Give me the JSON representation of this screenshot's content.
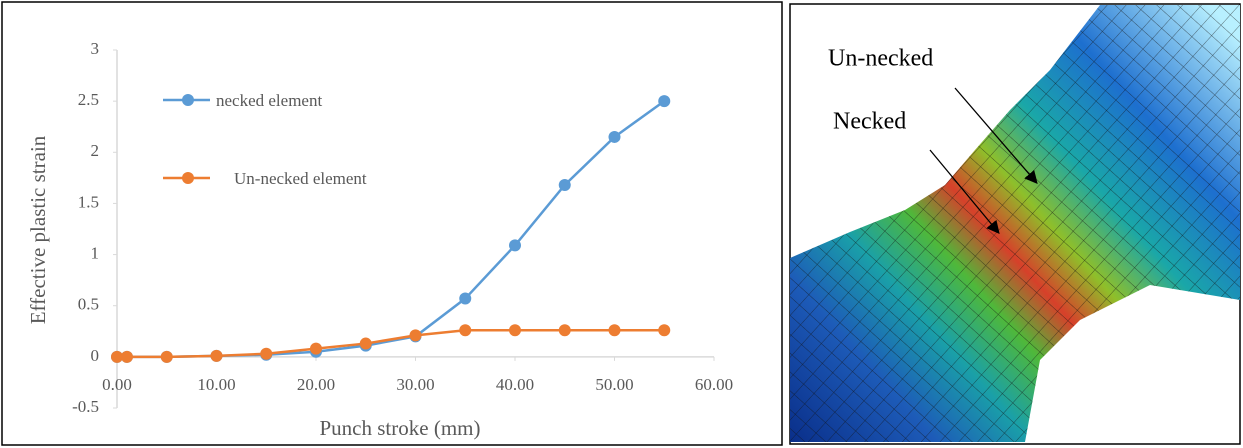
{
  "chart_data": {
    "type": "line",
    "x_label": "Punch stroke (mm)",
    "y_label": "Effective plastic strain",
    "x": [
      0,
      1,
      5,
      10,
      15,
      20,
      25,
      30,
      35,
      40,
      45,
      50,
      55
    ],
    "series": [
      {
        "name": "necked element",
        "color": "#5b9bd5",
        "values": [
          0,
          0,
          0,
          0.01,
          0.02,
          0.05,
          0.11,
          0.2,
          0.57,
          1.09,
          1.68,
          2.15,
          2.5
        ]
      },
      {
        "name": "Un-necked element",
        "color": "#ed7d31",
        "values": [
          0,
          0,
          0,
          0.01,
          0.03,
          0.08,
          0.13,
          0.21,
          0.26,
          0.26,
          0.26,
          0.26,
          0.26
        ]
      }
    ],
    "xlim": [
      0,
      60
    ],
    "xticks": [
      {
        "value": 0,
        "label": "0.00"
      },
      {
        "value": 10,
        "label": "10.00"
      },
      {
        "value": 20,
        "label": "20.00"
      },
      {
        "value": 30,
        "label": "30.00"
      },
      {
        "value": 40,
        "label": "40.00"
      },
      {
        "value": 50,
        "label": "50.00"
      },
      {
        "value": 60,
        "label": "60.00"
      }
    ],
    "ylim": [
      -0.5,
      3
    ],
    "yticks": [
      -0.5,
      0,
      0.5,
      1,
      1.5,
      2,
      2.5,
      3
    ],
    "grid": false,
    "legend": "top-left"
  },
  "image": {
    "labels": [
      "Un-necked",
      "Necked"
    ]
  }
}
